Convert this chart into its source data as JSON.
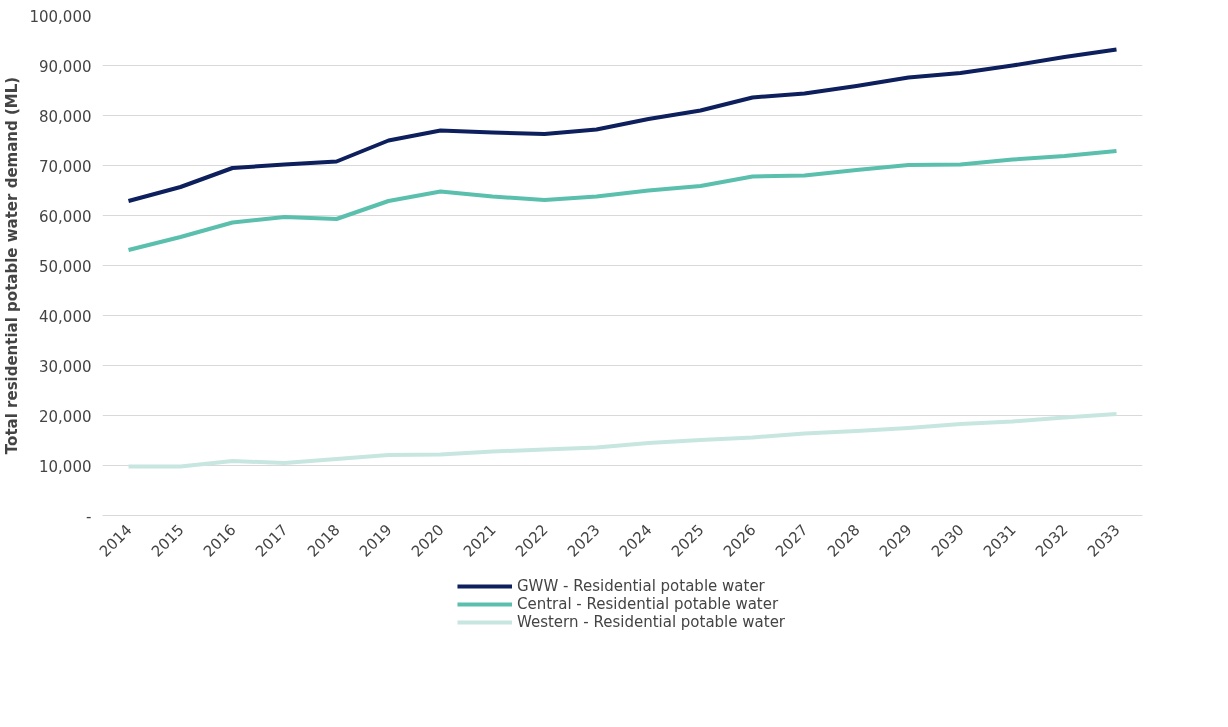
{
  "chart_data": {
    "type": "line",
    "ylabel": "Total residential potable water demand (ML)",
    "categories": [
      "2014",
      "2015",
      "2016",
      "2017",
      "2018",
      "2019",
      "2020",
      "2021",
      "2022",
      "2023",
      "2024",
      "2025",
      "2026",
      "2027",
      "2028",
      "2029",
      "2030",
      "2031",
      "2032",
      "2033"
    ],
    "series": [
      {
        "name": "GWW - Residential potable water",
        "color": "#0d1f5c",
        "values": [
          62900,
          65700,
          69500,
          70200,
          70800,
          75000,
          77000,
          76600,
          76300,
          77200,
          79300,
          81000,
          83600,
          84400,
          85900,
          87600,
          88500,
          90000,
          91700,
          93200
        ]
      },
      {
        "name": "Central - Residential potable water",
        "color": "#5bbfad",
        "values": [
          53100,
          55700,
          58600,
          59700,
          59300,
          62900,
          64800,
          63800,
          63100,
          63800,
          65000,
          65900,
          67800,
          68000,
          69100,
          70100,
          70200,
          71200,
          71900,
          72900
        ]
      },
      {
        "name": "Western - Residential potable water",
        "color": "#c8e6e0",
        "values": [
          9800,
          9800,
          10900,
          10500,
          11300,
          12100,
          12200,
          12800,
          13200,
          13600,
          14500,
          15100,
          15600,
          16400,
          16900,
          17500,
          18300,
          18800,
          19600,
          20300
        ]
      }
    ],
    "ylim": [
      0,
      100000
    ],
    "yticks": [
      {
        "value": 0,
        "label": "-"
      },
      {
        "value": 10000,
        "label": "10,000"
      },
      {
        "value": 20000,
        "label": "20,000"
      },
      {
        "value": 30000,
        "label": "30,000"
      },
      {
        "value": 40000,
        "label": "40,000"
      },
      {
        "value": 50000,
        "label": "50,000"
      },
      {
        "value": 60000,
        "label": "60,000"
      },
      {
        "value": 70000,
        "label": "70,000"
      },
      {
        "value": 80000,
        "label": "80,000"
      },
      {
        "value": 90000,
        "label": "90,000"
      },
      {
        "value": 100000,
        "label": "100,000"
      }
    ],
    "grid": "y",
    "legend": "bottom",
    "marker": "none",
    "line_style": "solid"
  }
}
